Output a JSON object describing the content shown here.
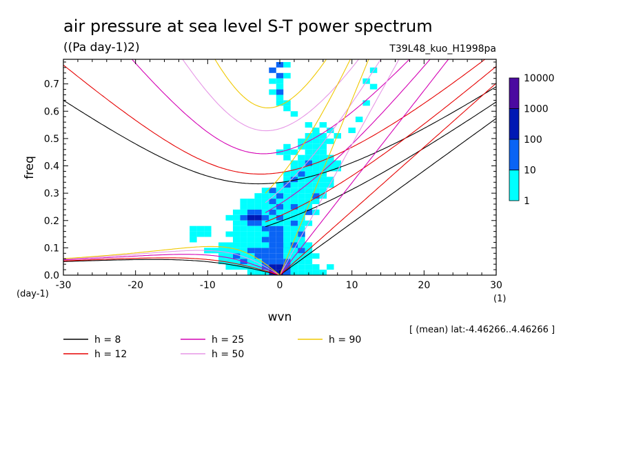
{
  "chart_data": {
    "type": "heatmap",
    "title": "air pressure at sea level S-T power spectrum",
    "units": "((Pa day-1)2)",
    "run_label": "T39L48_kuo_H1998pa",
    "xlabel": "wvn",
    "ylabel": "freq",
    "x_unit": "(1)",
    "y_unit": "(day-1)",
    "xlim": [
      -30,
      30
    ],
    "ylim": [
      0,
      0.79
    ],
    "x_ticks": [
      "-30",
      "-20",
      "-10",
      "0",
      "10",
      "20",
      "30"
    ],
    "y_ticks": [
      "0.0",
      "0.1",
      "0.2",
      "0.3",
      "0.4",
      "0.5",
      "0.6",
      "0.7"
    ],
    "mean_note": "[ (mean) lat:-4.46266..4.46266 ]",
    "colorbar": {
      "labels": [
        "1",
        "10",
        "100",
        "1000",
        "10000"
      ],
      "colors": [
        "#00ffff",
        "#0a64f5",
        "#0018b4",
        "#4b0aa0"
      ]
    },
    "power_cells": [
      [
        -1,
        0.01,
        3
      ],
      [
        0,
        0.01,
        3
      ],
      [
        1,
        0.01,
        2
      ],
      [
        -1,
        0.03,
        3
      ],
      [
        0,
        0.03,
        3
      ],
      [
        1,
        0.03,
        2
      ],
      [
        -2,
        0.03,
        2
      ],
      [
        -2,
        0.05,
        2
      ],
      [
        -1,
        0.05,
        2
      ],
      [
        0,
        0.05,
        2
      ],
      [
        1,
        0.05,
        2
      ],
      [
        2,
        0.05,
        1
      ],
      [
        -3,
        0.07,
        2
      ],
      [
        -2,
        0.07,
        2
      ],
      [
        -1,
        0.07,
        2
      ],
      [
        0,
        0.07,
        2
      ],
      [
        1,
        0.07,
        1
      ],
      [
        2,
        0.07,
        1
      ],
      [
        -3,
        0.09,
        2
      ],
      [
        -2,
        0.09,
        2
      ],
      [
        -1,
        0.09,
        2
      ],
      [
        0,
        0.09,
        2
      ],
      [
        1,
        0.09,
        1
      ],
      [
        2,
        0.09,
        1
      ],
      [
        -1,
        0.11,
        2
      ],
      [
        0,
        0.11,
        2
      ],
      [
        1,
        0.11,
        2
      ],
      [
        -2,
        0.13,
        2
      ],
      [
        -1,
        0.13,
        2
      ],
      [
        0,
        0.13,
        2
      ],
      [
        1,
        0.13,
        1
      ],
      [
        -1,
        0.15,
        2
      ],
      [
        0,
        0.15,
        2
      ],
      [
        -2,
        0.17,
        2
      ],
      [
        -1,
        0.17,
        2
      ],
      [
        0,
        0.17,
        2
      ],
      [
        -4,
        0.21,
        3
      ],
      [
        -3,
        0.21,
        3
      ],
      [
        -5,
        0.21,
        2
      ],
      [
        -4,
        0.19,
        2
      ],
      [
        -3,
        0.19,
        2
      ],
      [
        -4,
        0.23,
        2
      ],
      [
        -3,
        0.23,
        2
      ],
      [
        -2,
        0.21,
        2
      ],
      [
        -1,
        0.23,
        2
      ],
      [
        0,
        0.21,
        2
      ],
      [
        0,
        0.25,
        2
      ],
      [
        2,
        0.19,
        2
      ],
      [
        3,
        0.15,
        2
      ],
      [
        -1,
        0.27,
        2
      ],
      [
        0,
        0.29,
        2
      ],
      [
        -1,
        0.31,
        2
      ],
      [
        1,
        0.33,
        2
      ],
      [
        2,
        0.35,
        2
      ],
      [
        2,
        0.25,
        2
      ],
      [
        4,
        0.23,
        2
      ],
      [
        5,
        0.29,
        2
      ],
      [
        3,
        0.37,
        2
      ],
      [
        4,
        0.41,
        2
      ],
      [
        0,
        0.73,
        2
      ],
      [
        0,
        0.67,
        2
      ],
      [
        -1,
        0.75,
        2
      ],
      [
        0,
        0.77,
        2
      ],
      [
        -5,
        0.05,
        2
      ],
      [
        -6,
        0.07,
        2
      ],
      [
        -4,
        0.09,
        2
      ],
      [
        2,
        0.11,
        2
      ],
      [
        3,
        0.09,
        2
      ],
      [
        -8,
        0.05,
        1
      ],
      [
        -7,
        0.03,
        1
      ],
      [
        -6,
        0.03,
        1
      ],
      [
        -5,
        0.03,
        1
      ],
      [
        -4,
        0.03,
        1
      ],
      [
        -3,
        0.05,
        1
      ],
      [
        -4,
        0.05,
        1
      ],
      [
        -6,
        0.05,
        1
      ],
      [
        -7,
        0.05,
        1
      ],
      [
        -8,
        0.07,
        1
      ],
      [
        -7,
        0.07,
        1
      ],
      [
        -5,
        0.07,
        1
      ],
      [
        -4,
        0.07,
        1
      ],
      [
        -10,
        0.09,
        1
      ],
      [
        -9,
        0.09,
        1
      ],
      [
        -8,
        0.09,
        1
      ],
      [
        -7,
        0.09,
        1
      ],
      [
        -6,
        0.09,
        1
      ],
      [
        -5,
        0.09,
        1
      ],
      [
        -8,
        0.11,
        1
      ],
      [
        -7,
        0.11,
        1
      ],
      [
        -6,
        0.11,
        1
      ],
      [
        -5,
        0.11,
        1
      ],
      [
        -4,
        0.11,
        1
      ],
      [
        -3,
        0.11,
        1
      ],
      [
        -2,
        0.11,
        1
      ],
      [
        -6,
        0.13,
        1
      ],
      [
        -5,
        0.13,
        1
      ],
      [
        -4,
        0.13,
        1
      ],
      [
        -3,
        0.13,
        1
      ],
      [
        -12,
        0.15,
        1
      ],
      [
        -11,
        0.15,
        1
      ],
      [
        -10,
        0.15,
        1
      ],
      [
        -7,
        0.15,
        1
      ],
      [
        -6,
        0.15,
        1
      ],
      [
        -5,
        0.15,
        1
      ],
      [
        -4,
        0.15,
        1
      ],
      [
        -3,
        0.15,
        1
      ],
      [
        -2,
        0.15,
        1
      ],
      [
        1,
        0.15,
        1
      ],
      [
        2,
        0.15,
        1
      ],
      [
        -12,
        0.17,
        1
      ],
      [
        -11,
        0.17,
        1
      ],
      [
        -10,
        0.17,
        1
      ],
      [
        -6,
        0.17,
        1
      ],
      [
        -5,
        0.17,
        1
      ],
      [
        -4,
        0.17,
        1
      ],
      [
        -3,
        0.17,
        1
      ],
      [
        1,
        0.17,
        1
      ],
      [
        2,
        0.17,
        1
      ],
      [
        3,
        0.17,
        1
      ],
      [
        -6,
        0.19,
        1
      ],
      [
        -5,
        0.19,
        1
      ],
      [
        -2,
        0.19,
        1
      ],
      [
        -1,
        0.19,
        1
      ],
      [
        0,
        0.19,
        1
      ],
      [
        1,
        0.19,
        1
      ],
      [
        3,
        0.19,
        1
      ],
      [
        4,
        0.19,
        1
      ],
      [
        -7,
        0.21,
        1
      ],
      [
        -6,
        0.21,
        1
      ],
      [
        -1,
        0.21,
        1
      ],
      [
        1,
        0.21,
        1
      ],
      [
        2,
        0.21,
        1
      ],
      [
        3,
        0.21,
        1
      ],
      [
        -6,
        0.23,
        1
      ],
      [
        -5,
        0.23,
        1
      ],
      [
        -2,
        0.23,
        1
      ],
      [
        0,
        0.23,
        1
      ],
      [
        1,
        0.23,
        1
      ],
      [
        2,
        0.23,
        1
      ],
      [
        3,
        0.23,
        1
      ],
      [
        5,
        0.23,
        1
      ],
      [
        -5,
        0.25,
        1
      ],
      [
        -4,
        0.25,
        1
      ],
      [
        -3,
        0.25,
        1
      ],
      [
        -2,
        0.25,
        1
      ],
      [
        -1,
        0.25,
        1
      ],
      [
        1,
        0.25,
        1
      ],
      [
        3,
        0.25,
        1
      ],
      [
        4,
        0.25,
        1
      ],
      [
        -5,
        0.27,
        1
      ],
      [
        -4,
        0.27,
        1
      ],
      [
        -3,
        0.27,
        1
      ],
      [
        -2,
        0.27,
        1
      ],
      [
        0,
        0.27,
        1
      ],
      [
        1,
        0.27,
        1
      ],
      [
        2,
        0.27,
        1
      ],
      [
        3,
        0.27,
        1
      ],
      [
        4,
        0.27,
        1
      ],
      [
        5,
        0.27,
        1
      ],
      [
        -3,
        0.29,
        1
      ],
      [
        -2,
        0.29,
        1
      ],
      [
        -1,
        0.29,
        1
      ],
      [
        1,
        0.29,
        1
      ],
      [
        2,
        0.29,
        1
      ],
      [
        3,
        0.29,
        1
      ],
      [
        4,
        0.29,
        1
      ],
      [
        6,
        0.29,
        1
      ],
      [
        -2,
        0.31,
        1
      ],
      [
        0,
        0.31,
        1
      ],
      [
        1,
        0.31,
        1
      ],
      [
        2,
        0.31,
        1
      ],
      [
        3,
        0.31,
        1
      ],
      [
        4,
        0.31,
        1
      ],
      [
        5,
        0.31,
        1
      ],
      [
        6,
        0.31,
        1
      ],
      [
        0,
        0.33,
        1
      ],
      [
        2,
        0.33,
        1
      ],
      [
        3,
        0.33,
        1
      ],
      [
        4,
        0.33,
        1
      ],
      [
        5,
        0.33,
        1
      ],
      [
        6,
        0.33,
        1
      ],
      [
        7,
        0.33,
        1
      ],
      [
        1,
        0.35,
        1
      ],
      [
        3,
        0.35,
        1
      ],
      [
        4,
        0.35,
        1
      ],
      [
        5,
        0.35,
        1
      ],
      [
        6,
        0.35,
        1
      ],
      [
        7,
        0.35,
        1
      ],
      [
        1,
        0.37,
        1
      ],
      [
        2,
        0.37,
        1
      ],
      [
        4,
        0.37,
        1
      ],
      [
        5,
        0.37,
        1
      ],
      [
        6,
        0.37,
        1
      ],
      [
        2,
        0.39,
        1
      ],
      [
        3,
        0.39,
        1
      ],
      [
        4,
        0.39,
        1
      ],
      [
        5,
        0.39,
        1
      ],
      [
        6,
        0.39,
        1
      ],
      [
        7,
        0.39,
        1
      ],
      [
        2,
        0.41,
        1
      ],
      [
        3,
        0.41,
        1
      ],
      [
        5,
        0.41,
        1
      ],
      [
        6,
        0.41,
        1
      ],
      [
        7,
        0.41,
        1
      ],
      [
        8,
        0.41,
        1
      ],
      [
        1,
        0.43,
        1
      ],
      [
        3,
        0.43,
        1
      ],
      [
        4,
        0.43,
        1
      ],
      [
        5,
        0.43,
        1
      ],
      [
        6,
        0.43,
        1
      ],
      [
        7,
        0.43,
        1
      ],
      [
        0,
        0.45,
        1
      ],
      [
        1,
        0.45,
        1
      ],
      [
        2,
        0.45,
        1
      ],
      [
        4,
        0.45,
        1
      ],
      [
        5,
        0.45,
        1
      ],
      [
        6,
        0.45,
        1
      ],
      [
        1,
        0.47,
        1
      ],
      [
        3,
        0.47,
        1
      ],
      [
        4,
        0.47,
        1
      ],
      [
        5,
        0.47,
        1
      ],
      [
        6,
        0.47,
        1
      ],
      [
        3,
        0.49,
        1
      ],
      [
        4,
        0.49,
        1
      ],
      [
        5,
        0.49,
        1
      ],
      [
        6,
        0.49,
        1
      ],
      [
        7,
        0.49,
        1
      ],
      [
        4,
        0.51,
        1
      ],
      [
        5,
        0.51,
        1
      ],
      [
        6,
        0.51,
        1
      ],
      [
        8,
        0.51,
        1
      ],
      [
        5,
        0.53,
        1
      ],
      [
        7,
        0.53,
        1
      ],
      [
        4,
        0.55,
        1
      ],
      [
        6,
        0.55,
        1
      ],
      [
        1,
        0.61,
        1
      ],
      [
        2,
        0.59,
        1
      ],
      [
        1,
        0.63,
        1
      ],
      [
        0,
        0.63,
        1
      ],
      [
        0,
        0.65,
        1
      ],
      [
        -1,
        0.67,
        1
      ],
      [
        0,
        0.69,
        1
      ],
      [
        0,
        0.71,
        1
      ],
      [
        -1,
        0.71,
        1
      ],
      [
        1,
        0.73,
        1
      ],
      [
        1,
        0.77,
        1
      ],
      [
        10,
        0.53,
        1
      ],
      [
        11,
        0.57,
        1
      ],
      [
        12,
        0.63,
        1
      ],
      [
        12,
        0.71,
        1
      ],
      [
        13,
        0.75,
        1
      ],
      [
        13,
        0.69,
        1
      ],
      [
        5,
        0.01,
        1
      ],
      [
        6,
        0.01,
        1
      ],
      [
        7,
        0.03,
        1
      ],
      [
        5,
        0.03,
        1
      ],
      [
        3,
        0.05,
        1
      ],
      [
        4,
        0.05,
        1
      ],
      [
        3,
        0.07,
        1
      ],
      [
        4,
        0.07,
        1
      ],
      [
        5,
        0.07,
        1
      ],
      [
        4,
        0.09,
        1
      ],
      [
        4,
        0.11,
        1
      ],
      [
        3,
        0.11,
        1
      ],
      [
        2,
        0.13,
        1
      ],
      [
        3,
        0.13,
        1
      ],
      [
        1,
        0.11,
        1
      ],
      [
        -2,
        0.01,
        1
      ],
      [
        -3,
        0.01,
        1
      ],
      [
        -4,
        0.01,
        1
      ],
      [
        -3,
        0.03,
        1
      ],
      [
        2,
        0.01,
        1
      ],
      [
        3,
        0.01,
        1
      ],
      [
        4,
        0.01,
        1
      ],
      [
        2,
        0.03,
        1
      ],
      [
        3,
        0.03,
        1
      ],
      [
        4,
        0.03,
        1
      ],
      [
        -12,
        0.13,
        1
      ],
      [
        8,
        0.39,
        1
      ],
      [
        5,
        0.37,
        1
      ]
    ],
    "series": [
      {
        "name": "h = 8",
        "color": "#000000"
      },
      {
        "name": "h = 12",
        "color": "#e60000"
      },
      {
        "name": "h = 25",
        "color": "#d400b4"
      },
      {
        "name": "h = 50",
        "color": "#e696e6"
      },
      {
        "name": "h = 90",
        "color": "#f0c800"
      }
    ],
    "grid": false,
    "legend_position": "bottom"
  }
}
